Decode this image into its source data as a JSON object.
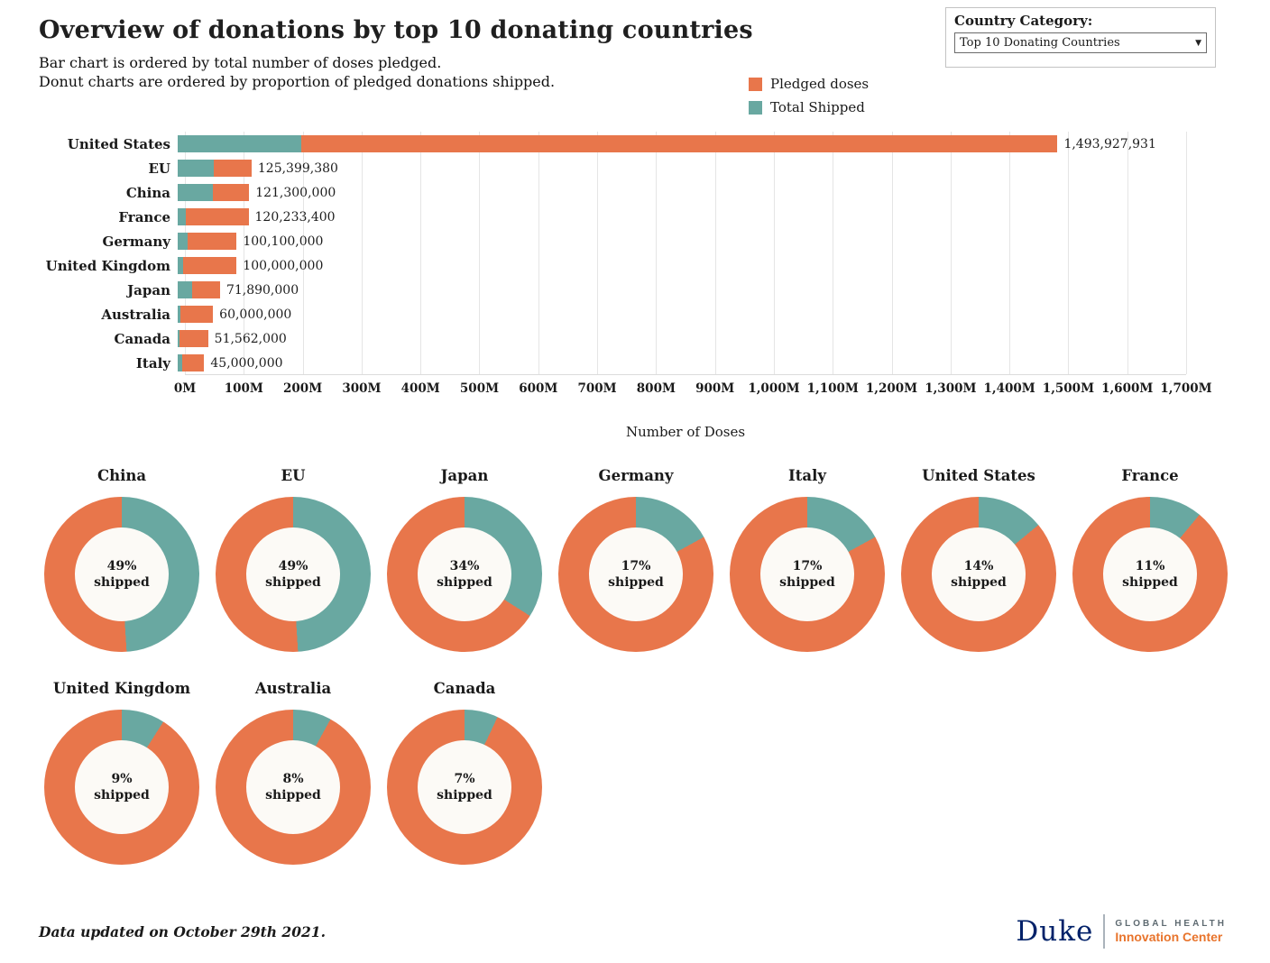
{
  "header": {
    "title": "Overview of donations by top 10 donating countries",
    "subtitle1": "Bar chart is ordered by total number of doses pledged.",
    "subtitle2": "Donut charts are ordered by proportion of pledged donations shipped.",
    "category_label": "Country Category:",
    "category_value": "Top 10 Donating Countries"
  },
  "legend": {
    "pledged_label": "Pledged doses",
    "shipped_label": "Total Shipped"
  },
  "colors": {
    "pledged": "#E8764B",
    "shipped": "#69A8A1",
    "duke_blue": "#012169",
    "logo_orange": "#E8742C"
  },
  "chart_data": [
    {
      "type": "bar",
      "orientation": "horizontal",
      "categories": [
        "United States",
        "EU",
        "China",
        "France",
        "Germany",
        "United Kingdom",
        "Japan",
        "Australia",
        "Canada",
        "Italy"
      ],
      "series": [
        {
          "name": "Pledged doses",
          "values": [
            1493927931,
            125399380,
            121300000,
            120233400,
            100100000,
            100000000,
            71890000,
            60000000,
            51562000,
            45000000
          ]
        },
        {
          "name": "Total Shipped",
          "values": [
            209149910,
            61445696,
            59437000,
            13225674,
            17017000,
            9000000,
            24442600,
            4800000,
            3609340,
            7650000
          ]
        }
      ],
      "value_labels": [
        "1,493,927,931",
        "125,399,380",
        "121,300,000",
        "120,233,400",
        "100,100,000",
        "100,000,000",
        "71,890,000",
        "60,000,000",
        "51,562,000",
        "45,000,000"
      ],
      "xlabel": "Number of Doses",
      "xlim_m": [
        0,
        1700
      ],
      "xticks": [
        "0M",
        "100M",
        "200M",
        "300M",
        "400M",
        "500M",
        "600M",
        "700M",
        "800M",
        "900M",
        "1,000M",
        "1,100M",
        "1,200M",
        "1,300M",
        "1,400M",
        "1,500M",
        "1,600M",
        "1,700M"
      ],
      "grid": true,
      "legend_position": "top-right"
    },
    {
      "type": "pie",
      "subtype": "donut",
      "unit_label": "shipped",
      "rows": [
        [
          {
            "country": "China",
            "percent": 49
          },
          {
            "country": "EU",
            "percent": 49
          },
          {
            "country": "Japan",
            "percent": 34
          },
          {
            "country": "Germany",
            "percent": 17
          },
          {
            "country": "Italy",
            "percent": 17
          },
          {
            "country": "United States",
            "percent": 14
          },
          {
            "country": "France",
            "percent": 11
          }
        ],
        [
          {
            "country": "United Kingdom",
            "percent": 9
          },
          {
            "country": "Australia",
            "percent": 8
          },
          {
            "country": "Canada",
            "percent": 7
          }
        ]
      ]
    }
  ],
  "footer": {
    "updated": "Data updated on October 29th 2021.",
    "duke": "Duke",
    "global_health": "GLOBAL HEALTH",
    "innovation_center": "Innovation Center"
  }
}
